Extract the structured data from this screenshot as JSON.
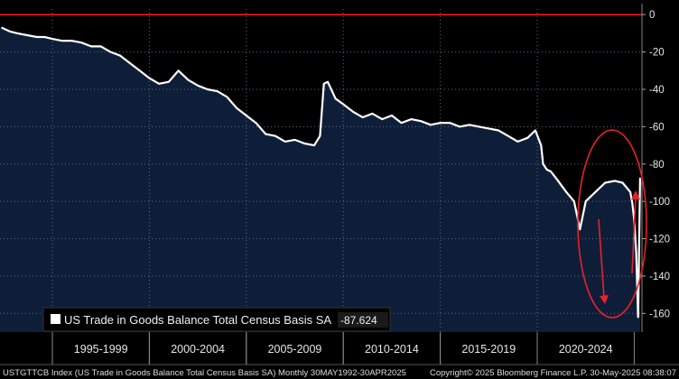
{
  "chart_data": {
    "type": "area",
    "title": "",
    "xlabel": "",
    "ylabel": "",
    "xlim": [
      1992.3,
      2025.4
    ],
    "ylim": [
      -170,
      3
    ],
    "yticks": [
      0,
      -20,
      -40,
      -60,
      -80,
      -100,
      -120,
      -140,
      -160
    ],
    "x_periods": [
      "1995-1999",
      "2000-2004",
      "2005-2009",
      "2010-2014",
      "2015-2019",
      "2020-2024"
    ],
    "x_period_bounds": [
      [
        1995,
        2000
      ],
      [
        2000,
        2005
      ],
      [
        2005,
        2010
      ],
      [
        2010,
        2015
      ],
      [
        2015,
        2020
      ],
      [
        2020,
        2025
      ]
    ],
    "reference_line": 0,
    "grid": true,
    "legend_position": "bottom-left",
    "series": [
      {
        "name": "US Trade in Goods Balance Total Census Basis SA",
        "last_value": "-87.624",
        "x": [
          1992.4,
          1992.8,
          1993.2,
          1993.7,
          1994.2,
          1994.6,
          1995.0,
          1995.5,
          1996.0,
          1996.5,
          1997.0,
          1997.5,
          1998.0,
          1998.5,
          1999.0,
          1999.5,
          2000.0,
          2000.5,
          2001.0,
          2001.5,
          2002.0,
          2002.5,
          2003.0,
          2003.5,
          2004.0,
          2004.5,
          2005.0,
          2005.5,
          2006.0,
          2006.5,
          2007.0,
          2007.5,
          2008.0,
          2008.5,
          2008.8,
          2009.0,
          2009.2,
          2009.6,
          2010.0,
          2010.5,
          2011.0,
          2011.5,
          2012.0,
          2012.5,
          2013.0,
          2013.5,
          2014.0,
          2014.5,
          2015.0,
          2015.5,
          2016.0,
          2016.5,
          2017.0,
          2017.5,
          2018.0,
          2018.5,
          2019.0,
          2019.5,
          2019.9,
          2020.2,
          2020.3,
          2020.5,
          2020.7,
          2021.0,
          2021.5,
          2021.9,
          2022.2,
          2022.5,
          2023.0,
          2023.5,
          2024.0,
          2024.4,
          2024.8,
          2024.9,
          2025.0,
          2025.1,
          2025.2,
          2025.3
        ],
        "values": [
          -7,
          -9,
          -10,
          -11,
          -12,
          -12,
          -13,
          -14,
          -14,
          -15,
          -17,
          -17,
          -20,
          -22,
          -26,
          -30,
          -34,
          -37,
          -36,
          -30,
          -35,
          -38,
          -40,
          -41,
          -44,
          -50,
          -54,
          -58,
          -64,
          -65,
          -68,
          -67,
          -69,
          -70,
          -65,
          -37,
          -36,
          -45,
          -48,
          -52,
          -55,
          -53,
          -56,
          -54,
          -58,
          -56,
          -57,
          -59,
          -58,
          -58,
          -60,
          -59,
          -60,
          -61,
          -62,
          -65,
          -68,
          -66,
          -62,
          -70,
          -80,
          -83,
          -84,
          -88,
          -95,
          -100,
          -115,
          -100,
          -95,
          -90,
          -89,
          -90,
          -95,
          -101,
          -110,
          -127,
          -162,
          -87.6
        ]
      }
    ],
    "annotations": [
      "ellipse around 2020-2025 decline",
      "red arrow pointing down",
      "red arrow pointing up"
    ]
  },
  "legend": {
    "label": "US Trade in Goods Balance Total Census Basis SA",
    "value": "-87.624"
  },
  "footer": {
    "left": "USTGTTCB Index (US Trade in Goods Balance Total Census Basis SA)  Monthly 30MAY1992-30APR2025",
    "right": "Copyright© 2025 Bloomberg Finance L.P.     30-May-2025 08:38:07"
  },
  "colors": {
    "background": "#000000",
    "area_fill": "#0f1e38",
    "line": "#ffffff",
    "zero_line": "#ff1a1a",
    "annotation": "#e8212e",
    "grid": "#5a6a82"
  }
}
